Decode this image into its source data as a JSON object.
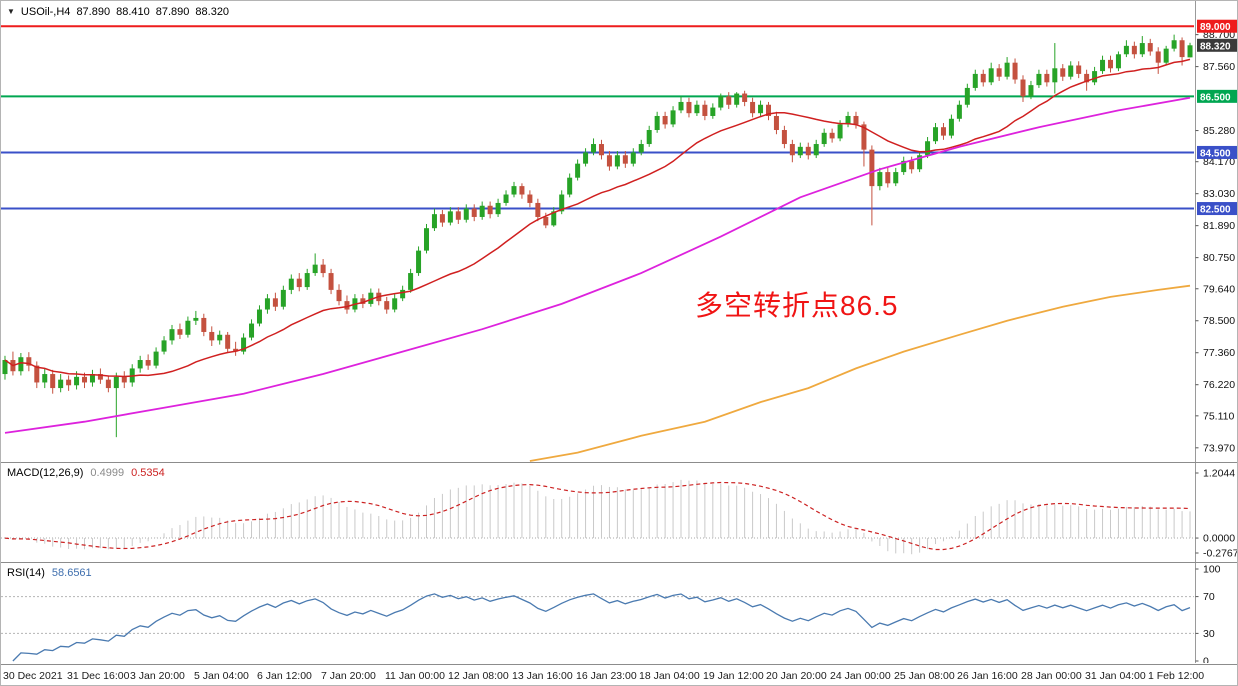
{
  "header": {
    "symbol_timeframe": "USOil-,H4",
    "open": "87.890",
    "high": "88.410",
    "low": "87.890",
    "close": "88.320"
  },
  "annotation": {
    "text": "多空转折点86.5",
    "color": "#f01414"
  },
  "indicators": {
    "macd": {
      "label": "MACD(12,26,9)",
      "value_main": "0.4999",
      "value_signal": "0.5354",
      "axis": [
        "1.2044",
        "0.0000",
        "-0.2767"
      ],
      "ylim": [
        -0.2767,
        1.2044
      ],
      "histogram_color": "#c9c9c9",
      "signal_color": "#cc2222"
    },
    "rsi": {
      "label": "RSI(14)",
      "value": "58.6561",
      "axis": [
        "100",
        "70",
        "30",
        "0"
      ],
      "levels": [
        70,
        30
      ],
      "ylim": [
        0,
        100
      ],
      "line_color": "#4a7ab0"
    }
  },
  "chart_data": {
    "type": "candlestick",
    "symbol": "USOil-",
    "timeframe": "H4",
    "ylim": [
      73.5,
      89.4
    ],
    "y_ticks": [
      "88.700",
      "87.560",
      "85.280",
      "84.170",
      "83.030",
      "81.890",
      "80.750",
      "79.640",
      "78.500",
      "77.360",
      "76.220",
      "75.110",
      "73.970"
    ],
    "x_labels": [
      "30 Dec 2021",
      "31 Dec 16:00",
      "3 Jan 20:00",
      "5 Jan 04:00",
      "6 Jan 12:00",
      "7 Jan 20:00",
      "11 Jan 00:00",
      "12 Jan 08:00",
      "13 Jan 16:00",
      "16 Jan 23:00",
      "18 Jan 04:00",
      "19 Jan 12:00",
      "20 Jan 20:00",
      "24 Jan 00:00",
      "25 Jan 08:00",
      "26 Jan 16:00",
      "28 Jan 00:00",
      "31 Jan 04:00",
      "1 Feb 12:00"
    ],
    "candle_up_color": "#27a327",
    "candle_down_color": "#c4513f",
    "hlines": [
      {
        "price": 89.0,
        "label": "89.000",
        "color": "#ee1c1c"
      },
      {
        "price": 86.5,
        "label": "86.500",
        "color": "#00a651"
      },
      {
        "price": 84.5,
        "label": "84.500",
        "color": "#3a50c8"
      },
      {
        "price": 82.5,
        "label": "82.500",
        "color": "#3a50c8"
      }
    ],
    "current_price": {
      "value": 88.32,
      "label": "88.320",
      "box_color": "#3a3a3a"
    },
    "moving_averages": [
      {
        "name": "ma-fast",
        "color": "#d02020",
        "type": "sma",
        "period": 18,
        "width": 1.5
      },
      {
        "name": "ma-mid",
        "color": "#dd22dd",
        "width": 1.8,
        "points": [
          [
            0,
            74.5
          ],
          [
            10,
            74.9
          ],
          [
            20,
            75.4
          ],
          [
            30,
            75.9
          ],
          [
            40,
            76.6
          ],
          [
            50,
            77.4
          ],
          [
            60,
            78.2
          ],
          [
            70,
            79.1
          ],
          [
            80,
            80.2
          ],
          [
            90,
            81.5
          ],
          [
            100,
            82.9
          ],
          [
            110,
            83.9
          ],
          [
            120,
            84.7
          ],
          [
            130,
            85.4
          ],
          [
            140,
            86.0
          ],
          [
            149,
            86.45
          ]
        ]
      },
      {
        "name": "ma-slow",
        "color": "#efa93f",
        "width": 1.8,
        "points": [
          [
            66,
            73.5
          ],
          [
            72,
            73.8
          ],
          [
            80,
            74.4
          ],
          [
            88,
            74.9
          ],
          [
            95,
            75.6
          ],
          [
            101,
            76.1
          ],
          [
            107,
            76.8
          ],
          [
            113,
            77.4
          ],
          [
            120,
            78.0
          ],
          [
            126,
            78.5
          ],
          [
            133,
            79.0
          ],
          [
            139,
            79.35
          ],
          [
            145,
            79.6
          ],
          [
            149,
            79.75
          ]
        ]
      }
    ],
    "candles_ohlc": [
      [
        76.6,
        77.25,
        76.4,
        77.1
      ],
      [
        77.1,
        77.4,
        76.55,
        76.7
      ],
      [
        76.7,
        77.35,
        76.55,
        77.2
      ],
      [
        77.2,
        77.38,
        76.7,
        76.9
      ],
      [
        76.9,
        77.05,
        76.1,
        76.3
      ],
      [
        76.3,
        76.8,
        76.1,
        76.6
      ],
      [
        76.6,
        76.75,
        75.9,
        76.1
      ],
      [
        76.1,
        76.6,
        75.95,
        76.4
      ],
      [
        76.4,
        76.55,
        76.0,
        76.2
      ],
      [
        76.2,
        76.7,
        76.05,
        76.5
      ],
      [
        76.5,
        76.65,
        76.1,
        76.3
      ],
      [
        76.3,
        76.75,
        76.15,
        76.6
      ],
      [
        76.6,
        76.8,
        76.25,
        76.4
      ],
      [
        76.4,
        76.55,
        75.95,
        76.1
      ],
      [
        76.1,
        76.65,
        74.35,
        76.5
      ],
      [
        76.5,
        76.7,
        76.1,
        76.3
      ],
      [
        76.3,
        76.95,
        76.15,
        76.8
      ],
      [
        76.8,
        77.25,
        76.65,
        77.1
      ],
      [
        77.1,
        77.3,
        76.75,
        76.9
      ],
      [
        76.9,
        77.55,
        76.8,
        77.4
      ],
      [
        77.4,
        77.95,
        77.3,
        77.8
      ],
      [
        77.8,
        78.35,
        77.65,
        78.2
      ],
      [
        78.2,
        78.4,
        77.85,
        78.0
      ],
      [
        78.0,
        78.65,
        77.9,
        78.5
      ],
      [
        78.5,
        78.85,
        78.35,
        78.6
      ],
      [
        78.6,
        78.75,
        77.95,
        78.1
      ],
      [
        78.1,
        78.3,
        77.6,
        77.8
      ],
      [
        77.8,
        78.15,
        77.65,
        78.0
      ],
      [
        78.0,
        78.1,
        77.35,
        77.5
      ],
      [
        77.5,
        77.75,
        77.25,
        77.4
      ],
      [
        77.4,
        78.05,
        77.3,
        77.9
      ],
      [
        77.9,
        78.55,
        77.8,
        78.4
      ],
      [
        78.4,
        79.05,
        78.3,
        78.9
      ],
      [
        78.9,
        79.45,
        78.75,
        79.3
      ],
      [
        79.3,
        79.5,
        78.85,
        79.0
      ],
      [
        79.0,
        79.75,
        78.9,
        79.6
      ],
      [
        79.6,
        80.15,
        79.45,
        80.0
      ],
      [
        80.0,
        80.2,
        79.55,
        79.7
      ],
      [
        79.7,
        80.35,
        79.6,
        80.2
      ],
      [
        80.2,
        80.9,
        80.1,
        80.5
      ],
      [
        80.5,
        80.7,
        80.05,
        80.2
      ],
      [
        80.2,
        80.35,
        79.45,
        79.6
      ],
      [
        79.6,
        79.8,
        79.05,
        79.2
      ],
      [
        79.2,
        79.4,
        78.75,
        78.9
      ],
      [
        78.9,
        79.45,
        78.8,
        79.3
      ],
      [
        79.3,
        79.45,
        78.95,
        79.1
      ],
      [
        79.1,
        79.65,
        79.0,
        79.5
      ],
      [
        79.5,
        79.65,
        79.05,
        79.2
      ],
      [
        79.2,
        79.35,
        78.75,
        78.9
      ],
      [
        78.9,
        79.45,
        78.8,
        79.3
      ],
      [
        79.3,
        79.75,
        79.2,
        79.6
      ],
      [
        79.6,
        80.35,
        79.5,
        80.2
      ],
      [
        80.2,
        81.15,
        80.1,
        81.0
      ],
      [
        81.0,
        81.95,
        80.9,
        81.8
      ],
      [
        81.8,
        82.5,
        81.7,
        82.3
      ],
      [
        82.3,
        82.45,
        81.85,
        82.0
      ],
      [
        82.0,
        82.55,
        81.9,
        82.4
      ],
      [
        82.4,
        82.55,
        81.95,
        82.1
      ],
      [
        82.1,
        82.65,
        82.0,
        82.5
      ],
      [
        82.5,
        82.65,
        82.05,
        82.2
      ],
      [
        82.2,
        82.75,
        82.1,
        82.6
      ],
      [
        82.6,
        82.75,
        82.15,
        82.3
      ],
      [
        82.3,
        82.85,
        82.2,
        82.7
      ],
      [
        82.7,
        83.15,
        82.6,
        83.0
      ],
      [
        83.0,
        83.45,
        82.9,
        83.3
      ],
      [
        83.3,
        83.4,
        82.85,
        83.0
      ],
      [
        83.0,
        83.15,
        82.55,
        82.7
      ],
      [
        82.7,
        82.85,
        82.05,
        82.2
      ],
      [
        82.2,
        82.35,
        81.8,
        81.9
      ],
      [
        81.9,
        82.55,
        81.85,
        82.4
      ],
      [
        82.4,
        83.15,
        82.3,
        83.0
      ],
      [
        83.0,
        83.75,
        82.9,
        83.6
      ],
      [
        83.6,
        84.25,
        83.5,
        84.1
      ],
      [
        84.1,
        84.65,
        84.0,
        84.5
      ],
      [
        84.5,
        85.0,
        84.4,
        84.8
      ],
      [
        84.8,
        84.95,
        84.25,
        84.4
      ],
      [
        84.4,
        84.55,
        83.85,
        84.0
      ],
      [
        84.0,
        84.55,
        83.9,
        84.4
      ],
      [
        84.4,
        84.55,
        83.95,
        84.1
      ],
      [
        84.1,
        84.65,
        84.0,
        84.5
      ],
      [
        84.5,
        84.95,
        84.4,
        84.8
      ],
      [
        84.8,
        85.45,
        84.7,
        85.3
      ],
      [
        85.3,
        85.95,
        85.2,
        85.8
      ],
      [
        85.8,
        85.95,
        85.35,
        85.5
      ],
      [
        85.5,
        86.15,
        85.4,
        86.0
      ],
      [
        86.0,
        86.5,
        85.9,
        86.3
      ],
      [
        86.3,
        86.45,
        85.75,
        85.9
      ],
      [
        85.9,
        86.35,
        85.8,
        86.2
      ],
      [
        86.2,
        86.35,
        85.65,
        85.8
      ],
      [
        85.8,
        86.25,
        85.7,
        86.1
      ],
      [
        86.1,
        86.6,
        86.0,
        86.5
      ],
      [
        86.5,
        86.65,
        86.05,
        86.2
      ],
      [
        86.2,
        86.65,
        86.1,
        86.6
      ],
      [
        86.6,
        86.7,
        86.15,
        86.3
      ],
      [
        86.3,
        86.45,
        85.75,
        85.9
      ],
      [
        85.9,
        86.35,
        85.8,
        86.2
      ],
      [
        86.2,
        86.3,
        85.65,
        85.8
      ],
      [
        85.8,
        85.95,
        85.15,
        85.3
      ],
      [
        85.3,
        85.45,
        84.65,
        84.8
      ],
      [
        84.8,
        84.95,
        84.15,
        84.4
      ],
      [
        84.4,
        84.85,
        84.3,
        84.7
      ],
      [
        84.7,
        84.85,
        84.25,
        84.4
      ],
      [
        84.4,
        84.95,
        84.3,
        84.8
      ],
      [
        84.8,
        85.35,
        84.7,
        85.2
      ],
      [
        85.2,
        85.35,
        84.85,
        85.0
      ],
      [
        85.0,
        85.65,
        84.9,
        85.5
      ],
      [
        85.5,
        85.95,
        85.4,
        85.8
      ],
      [
        85.8,
        85.95,
        85.35,
        85.5
      ],
      [
        85.5,
        85.6,
        84.0,
        84.6
      ],
      [
        84.6,
        84.75,
        81.9,
        83.3
      ],
      [
        83.3,
        83.95,
        83.15,
        83.8
      ],
      [
        83.8,
        83.95,
        83.25,
        83.4
      ],
      [
        83.4,
        83.95,
        83.3,
        83.8
      ],
      [
        83.8,
        84.35,
        83.7,
        84.2
      ],
      [
        84.2,
        84.35,
        83.75,
        83.9
      ],
      [
        83.9,
        84.55,
        83.8,
        84.4
      ],
      [
        84.4,
        85.05,
        84.3,
        84.9
      ],
      [
        84.9,
        85.55,
        84.8,
        85.4
      ],
      [
        85.4,
        85.55,
        84.95,
        85.1
      ],
      [
        85.1,
        85.85,
        85.0,
        85.7
      ],
      [
        85.7,
        86.35,
        85.6,
        86.2
      ],
      [
        86.2,
        86.95,
        86.1,
        86.8
      ],
      [
        86.8,
        87.45,
        86.7,
        87.3
      ],
      [
        87.3,
        87.45,
        86.85,
        87.0
      ],
      [
        87.0,
        87.7,
        86.9,
        87.5
      ],
      [
        87.5,
        87.65,
        87.05,
        87.2
      ],
      [
        87.2,
        87.9,
        87.1,
        87.7
      ],
      [
        87.7,
        87.85,
        86.95,
        87.1
      ],
      [
        87.1,
        87.25,
        86.3,
        86.5
      ],
      [
        86.5,
        87.05,
        86.4,
        86.9
      ],
      [
        86.9,
        87.45,
        86.8,
        87.3
      ],
      [
        87.3,
        87.45,
        86.85,
        87.0
      ],
      [
        87.0,
        88.4,
        86.6,
        87.5
      ],
      [
        87.5,
        87.65,
        87.05,
        87.2
      ],
      [
        87.2,
        87.75,
        87.1,
        87.6
      ],
      [
        87.6,
        87.75,
        87.15,
        87.3
      ],
      [
        87.3,
        87.45,
        86.7,
        87.0
      ],
      [
        87.0,
        87.55,
        86.9,
        87.4
      ],
      [
        87.4,
        87.95,
        87.3,
        87.8
      ],
      [
        87.8,
        87.95,
        87.35,
        87.5
      ],
      [
        87.5,
        88.1,
        87.4,
        88.0
      ],
      [
        88.0,
        88.5,
        87.9,
        88.3
      ],
      [
        88.3,
        88.45,
        87.85,
        88.0
      ],
      [
        88.0,
        88.65,
        87.9,
        88.4
      ],
      [
        88.4,
        88.55,
        87.95,
        88.1
      ],
      [
        88.1,
        88.25,
        87.3,
        87.7
      ],
      [
        87.7,
        88.3,
        87.6,
        88.2
      ],
      [
        88.2,
        88.7,
        88.1,
        88.5
      ],
      [
        88.5,
        88.6,
        87.6,
        87.9
      ],
      [
        87.89,
        88.41,
        87.89,
        88.32
      ]
    ]
  }
}
